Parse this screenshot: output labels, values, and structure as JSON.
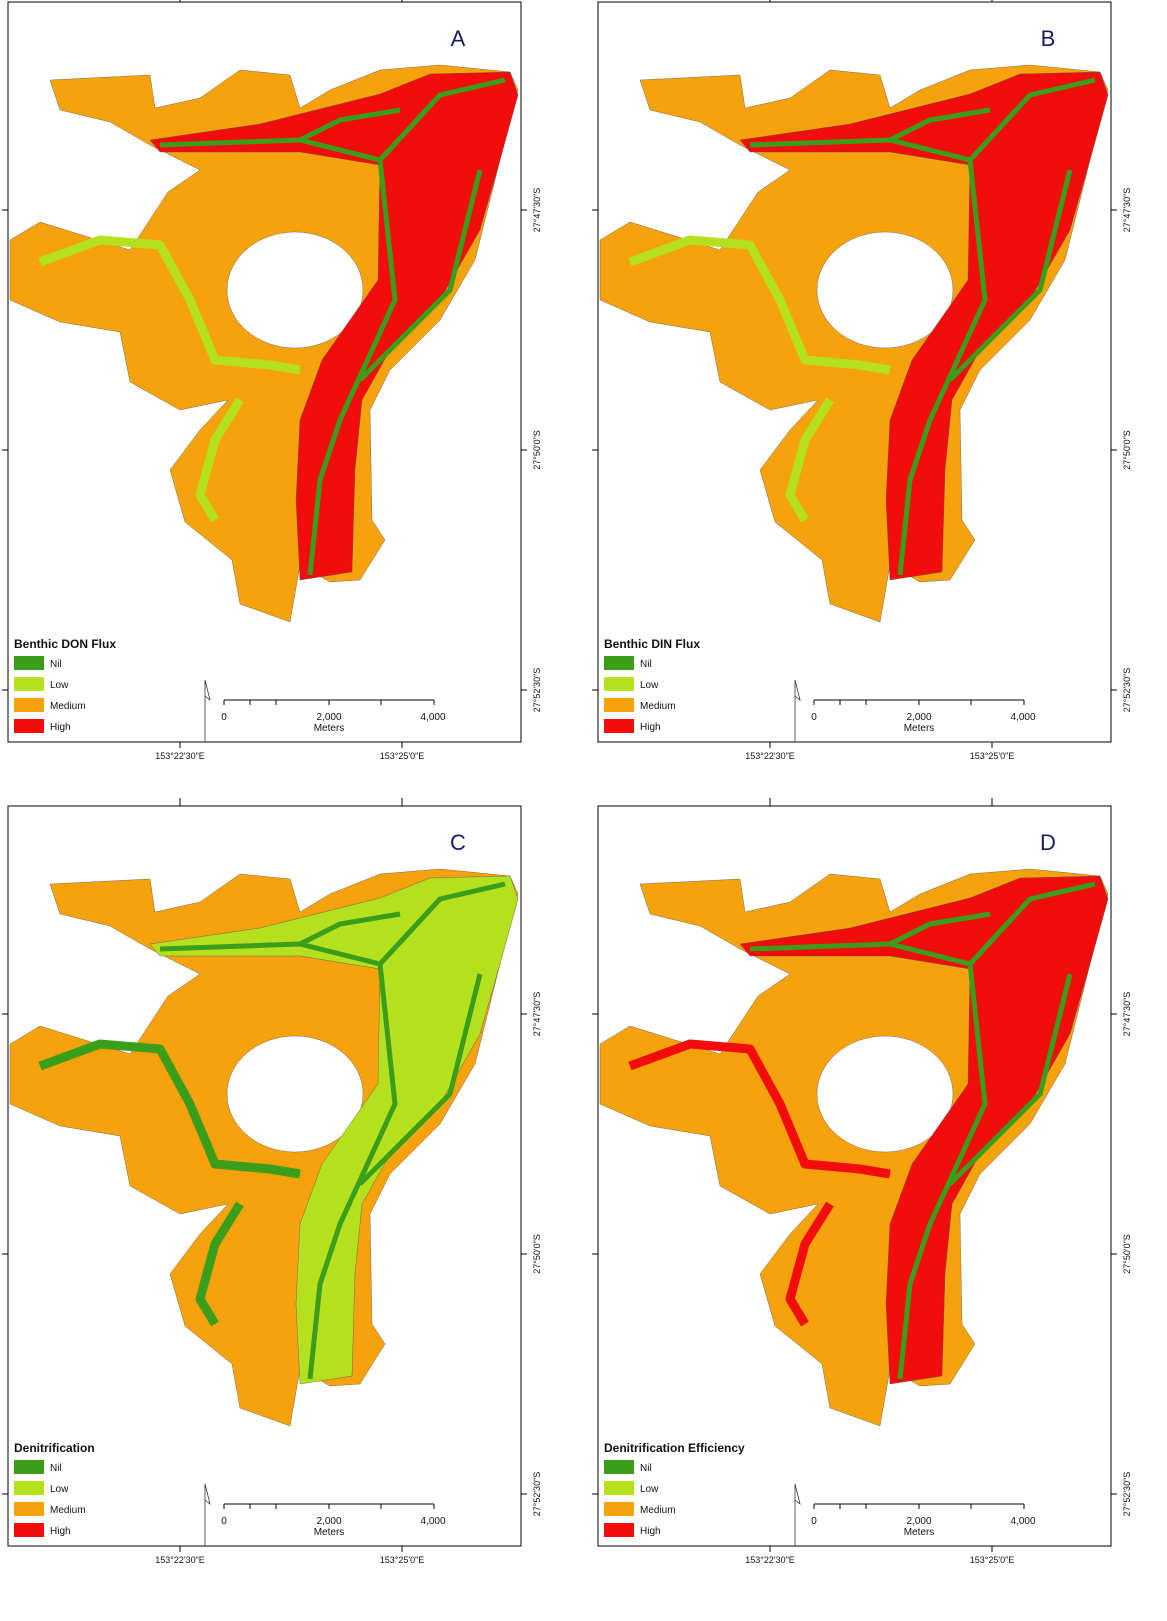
{
  "panels": [
    {
      "label": "A",
      "legend_title": "Benthic DON Flux"
    },
    {
      "label": "B",
      "legend_title": "Benthic DIN Flux"
    },
    {
      "label": "C",
      "legend_title": "Denitrification"
    },
    {
      "label": "D",
      "legend_title": "Denitrification Efficiency"
    }
  ],
  "legend_classes": [
    {
      "name": "Nil",
      "color": "#3a9e1a"
    },
    {
      "name": "Low",
      "color": "#b4e01e"
    },
    {
      "name": "Medium",
      "color": "#f5a20c"
    },
    {
      "name": "High",
      "color": "#f20c0c"
    }
  ],
  "scale_bar": {
    "labels": [
      "0",
      "2,000",
      "4,000"
    ],
    "unit": "Meters"
  },
  "x_labels": [
    "153°22'30\"E",
    "153°25'0\"E"
  ],
  "y_labels": [
    "27°47'30\"S",
    "27°50'0\"S",
    "27°52'30\"S"
  ]
}
